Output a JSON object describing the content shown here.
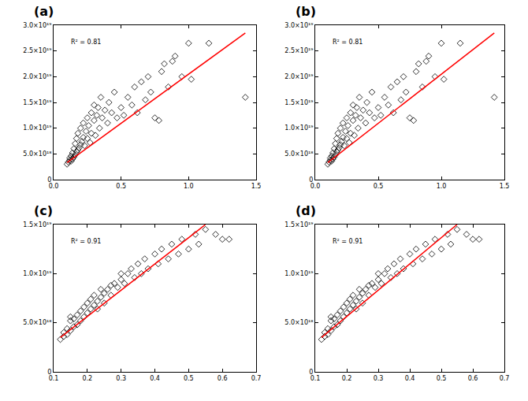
{
  "chart_data": [
    {
      "type": "scatter",
      "title": "(a)",
      "annotations": [
        "R² = 0.81"
      ],
      "grid": false,
      "xlim": [
        0,
        1.5
      ],
      "xticks": [
        {
          "value": 0,
          "label": "0.0"
        },
        0.5,
        {
          "value": 1,
          "label": "1.0"
        },
        1.5
      ],
      "ylim": [
        0,
        3e+19
      ],
      "yticks": [
        0,
        {
          "value": 5e+18,
          "label": "5.0×10¹⁸"
        },
        {
          "value": 1e+19,
          "label": "1.0×10¹⁹"
        },
        {
          "value": 1.5e+19,
          "label": "1.5×10¹⁹"
        },
        {
          "value": 2e+19,
          "label": "2.0×10¹⁹"
        },
        {
          "value": 2.5e+19,
          "label": "2.5×10¹⁹"
        },
        {
          "value": 3e+19,
          "label": "3.0×10¹⁹"
        }
      ],
      "series": [
        {
          "type": "scatter",
          "marker": "diamond",
          "color": "#000000",
          "x": [
            0.1,
            0.11,
            0.12,
            0.12,
            0.13,
            0.13,
            0.14,
            0.14,
            0.15,
            0.15,
            0.16,
            0.16,
            0.17,
            0.17,
            0.18,
            0.18,
            0.19,
            0.2,
            0.2,
            0.21,
            0.22,
            0.22,
            0.23,
            0.24,
            0.25,
            0.25,
            0.26,
            0.27,
            0.28,
            0.28,
            0.3,
            0.3,
            0.31,
            0.32,
            0.33,
            0.34,
            0.35,
            0.36,
            0.38,
            0.4,
            0.41,
            0.43,
            0.45,
            0.47,
            0.5,
            0.52,
            0.55,
            0.58,
            0.6,
            0.62,
            0.65,
            0.68,
            0.7,
            0.72,
            0.75,
            0.78,
            0.8,
            0.82,
            0.85,
            0.88,
            0.9,
            0.95,
            1.0,
            1.02,
            1.15,
            1.42
          ],
          "values": [
            3e+18,
            3.4e+18,
            3.8e+18,
            4.2e+18,
            3.6e+18,
            4.6e+18,
            4e+18,
            5.2e+18,
            4.4e+18,
            6e+18,
            4.8e+18,
            7e+18,
            5.4e+18,
            8e+18,
            5.8e+18,
            9e+18,
            6.2e+18,
            6.8e+18,
            1e+19,
            7.4e+18,
            8.2e+18,
            1.1e+19,
            6.6e+18,
            9.4e+18,
            1.2e+19,
            8e+18,
            1.05e+19,
            7.2e+18,
            1.3e+19,
            9e+18,
            1.15e+19,
            1.45e+19,
            8.6e+18,
            1.25e+19,
            1.4e+19,
            1e+19,
            1.6e+19,
            1.2e+19,
            1.35e+19,
            1.1e+19,
            1.5e+19,
            1.3e+19,
            1.7e+19,
            1.2e+19,
            1.4e+19,
            1.25e+19,
            1.6e+19,
            1.45e+19,
            1.8e+19,
            1.3e+19,
            1.9e+19,
            1.55e+19,
            2e+19,
            1.7e+19,
            1.2e+19,
            1.15e+19,
            2.1e+19,
            2.25e+19,
            1.8e+19,
            2.3e+19,
            2.4e+19,
            2e+19,
            2.65e+19,
            1.95e+19,
            2.65e+19,
            1.6e+19
          ]
        },
        {
          "type": "line",
          "line_style": "solid",
          "color": "#ff0000",
          "x": [
            0.1,
            1.42
          ],
          "values": [
            3.3e+18,
            2.85e+19
          ]
        }
      ]
    },
    {
      "type": "scatter",
      "title": "(b)",
      "annotations": [
        "R² = 0.81"
      ],
      "grid": false,
      "xlim": [
        0,
        1.5
      ],
      "xticks": [
        {
          "value": 0,
          "label": "0.0"
        },
        0.5,
        {
          "value": 1,
          "label": "1.0"
        },
        1.5
      ],
      "ylim": [
        0,
        3e+19
      ],
      "yticks": [
        0,
        {
          "value": 5e+18,
          "label": "5.0×10¹⁸"
        },
        {
          "value": 1e+19,
          "label": "1.0×10¹⁹"
        },
        {
          "value": 1.5e+19,
          "label": "1.5×10¹⁹"
        },
        {
          "value": 2e+19,
          "label": "2.0×10¹⁹"
        },
        {
          "value": 2.5e+19,
          "label": "2.5×10¹⁹"
        },
        {
          "value": 3e+19,
          "label": "3.0×10¹⁹"
        }
      ],
      "series": [
        {
          "type": "scatter",
          "marker": "diamond",
          "color": "#000000",
          "x": [
            0.1,
            0.11,
            0.12,
            0.12,
            0.13,
            0.13,
            0.14,
            0.14,
            0.15,
            0.15,
            0.16,
            0.16,
            0.17,
            0.17,
            0.18,
            0.18,
            0.19,
            0.2,
            0.2,
            0.21,
            0.22,
            0.22,
            0.23,
            0.24,
            0.25,
            0.25,
            0.26,
            0.27,
            0.28,
            0.28,
            0.3,
            0.3,
            0.31,
            0.32,
            0.33,
            0.34,
            0.35,
            0.36,
            0.38,
            0.4,
            0.41,
            0.43,
            0.45,
            0.47,
            0.5,
            0.52,
            0.55,
            0.58,
            0.6,
            0.62,
            0.65,
            0.68,
            0.7,
            0.72,
            0.75,
            0.78,
            0.8,
            0.82,
            0.85,
            0.88,
            0.9,
            0.95,
            1.0,
            1.02,
            1.15,
            1.42
          ],
          "values": [
            3e+18,
            3.4e+18,
            3.8e+18,
            4.2e+18,
            3.6e+18,
            4.6e+18,
            4e+18,
            5.2e+18,
            4.4e+18,
            6e+18,
            4.8e+18,
            7e+18,
            5.4e+18,
            8e+18,
            5.8e+18,
            9e+18,
            6.2e+18,
            6.8e+18,
            1e+19,
            7.4e+18,
            8.2e+18,
            1.1e+19,
            6.6e+18,
            9.4e+18,
            1.2e+19,
            8e+18,
            1.05e+19,
            7.2e+18,
            1.3e+19,
            9e+18,
            1.15e+19,
            1.45e+19,
            8.6e+18,
            1.25e+19,
            1.4e+19,
            1e+19,
            1.6e+19,
            1.2e+19,
            1.35e+19,
            1.1e+19,
            1.5e+19,
            1.3e+19,
            1.7e+19,
            1.2e+19,
            1.4e+19,
            1.25e+19,
            1.6e+19,
            1.45e+19,
            1.8e+19,
            1.3e+19,
            1.9e+19,
            1.55e+19,
            2e+19,
            1.7e+19,
            1.2e+19,
            1.15e+19,
            2.1e+19,
            2.25e+19,
            1.8e+19,
            2.3e+19,
            2.4e+19,
            2e+19,
            2.65e+19,
            1.95e+19,
            2.65e+19,
            1.6e+19
          ]
        },
        {
          "type": "line",
          "line_style": "solid",
          "color": "#ff0000",
          "x": [
            0.1,
            1.42
          ],
          "values": [
            3.3e+18,
            2.85e+19
          ]
        }
      ]
    },
    {
      "type": "scatter",
      "title": "(c)",
      "annotations": [
        "R² = 0.91"
      ],
      "grid": false,
      "xlim": [
        0.1,
        0.7
      ],
      "xticks": [
        0.1,
        0.2,
        0.3,
        0.4,
        0.5,
        0.6,
        0.7
      ],
      "ylim": [
        0,
        1.5e+19
      ],
      "yticks": [
        0,
        {
          "value": 5e+18,
          "label": "5.0×10¹⁸"
        },
        {
          "value": 1e+19,
          "label": "1.0×10¹⁹"
        },
        {
          "value": 1.5e+19,
          "label": "1.5×10¹⁹"
        }
      ],
      "series": [
        {
          "type": "scatter",
          "marker": "diamond",
          "color": "#000000",
          "x": [
            0.12,
            0.13,
            0.13,
            0.14,
            0.14,
            0.15,
            0.15,
            0.15,
            0.16,
            0.16,
            0.17,
            0.17,
            0.18,
            0.18,
            0.19,
            0.19,
            0.2,
            0.2,
            0.21,
            0.21,
            0.22,
            0.22,
            0.23,
            0.23,
            0.24,
            0.24,
            0.25,
            0.25,
            0.26,
            0.27,
            0.27,
            0.28,
            0.29,
            0.3,
            0.3,
            0.31,
            0.32,
            0.33,
            0.34,
            0.35,
            0.36,
            0.37,
            0.38,
            0.4,
            0.41,
            0.42,
            0.44,
            0.45,
            0.47,
            0.48,
            0.5,
            0.52,
            0.53,
            0.55,
            0.58,
            0.6,
            0.62
          ],
          "values": [
            3.3e+18,
            3.6e+18,
            4e+18,
            3.8e+18,
            4.4e+18,
            4.2e+18,
            5.2e+18,
            5.6e+18,
            4.6e+18,
            5.4e+18,
            4.8e+18,
            5.8e+18,
            5.2e+18,
            6.2e+18,
            5.6e+18,
            6.6e+18,
            6e+18,
            7e+18,
            6.4e+18,
            7.4e+18,
            6.8e+18,
            7.8e+18,
            7.2e+18,
            6.4e+18,
            7.6e+18,
            8.4e+18,
            8e+18,
            7e+18,
            8.4e+18,
            8.8e+18,
            7.8e+18,
            9e+18,
            8.6e+18,
            9.4e+18,
            1e+19,
            9e+18,
            1e+19,
            1.05e+19,
            9.6e+18,
            1.1e+19,
            1e+19,
            1.15e+19,
            1.05e+19,
            1.2e+19,
            1.1e+19,
            1.25e+19,
            1.15e+19,
            1.3e+19,
            1.2e+19,
            1.35e+19,
            1.25e+19,
            1.4e+19,
            1.3e+19,
            1.45e+19,
            1.4e+19,
            1.35e+19,
            1.35e+19
          ]
        },
        {
          "type": "line",
          "line_style": "solid",
          "color": "#ff0000",
          "x": [
            0.12,
            0.55
          ],
          "values": [
            3.5e+18,
            1.5e+19
          ]
        }
      ]
    },
    {
      "type": "scatter",
      "title": "(d)",
      "annotations": [
        "R² = 0.91"
      ],
      "grid": false,
      "xlim": [
        0.1,
        0.7
      ],
      "xticks": [
        0.1,
        0.2,
        0.3,
        0.4,
        0.5,
        0.6,
        0.7
      ],
      "ylim": [
        0,
        1.5e+19
      ],
      "yticks": [
        0,
        {
          "value": 5e+18,
          "label": "5.0×10¹⁸"
        },
        {
          "value": 1e+19,
          "label": "1.0×10¹⁹"
        },
        {
          "value": 1.5e+19,
          "label": "1.5×10¹⁹"
        }
      ],
      "series": [
        {
          "type": "scatter",
          "marker": "diamond",
          "color": "#000000",
          "x": [
            0.12,
            0.13,
            0.13,
            0.14,
            0.14,
            0.15,
            0.15,
            0.15,
            0.16,
            0.16,
            0.17,
            0.17,
            0.18,
            0.18,
            0.19,
            0.19,
            0.2,
            0.2,
            0.21,
            0.21,
            0.22,
            0.22,
            0.23,
            0.23,
            0.24,
            0.24,
            0.25,
            0.25,
            0.26,
            0.27,
            0.27,
            0.28,
            0.29,
            0.3,
            0.3,
            0.31,
            0.32,
            0.33,
            0.34,
            0.35,
            0.36,
            0.37,
            0.38,
            0.4,
            0.41,
            0.42,
            0.44,
            0.45,
            0.47,
            0.48,
            0.5,
            0.52,
            0.53,
            0.55,
            0.58,
            0.6,
            0.62
          ],
          "values": [
            3.3e+18,
            3.6e+18,
            4e+18,
            3.8e+18,
            4.4e+18,
            4.2e+18,
            5.2e+18,
            5.6e+18,
            4.6e+18,
            5.4e+18,
            4.8e+18,
            5.8e+18,
            5.2e+18,
            6.2e+18,
            5.6e+18,
            6.6e+18,
            6e+18,
            7e+18,
            6.4e+18,
            7.4e+18,
            6.8e+18,
            7.8e+18,
            7.2e+18,
            6.4e+18,
            7.6e+18,
            8.4e+18,
            8e+18,
            7e+18,
            8.4e+18,
            8.8e+18,
            7.8e+18,
            9e+18,
            8.6e+18,
            9.4e+18,
            1e+19,
            9e+18,
            1e+19,
            1.05e+19,
            9.6e+18,
            1.1e+19,
            1e+19,
            1.15e+19,
            1.05e+19,
            1.2e+19,
            1.1e+19,
            1.25e+19,
            1.15e+19,
            1.3e+19,
            1.2e+19,
            1.35e+19,
            1.25e+19,
            1.4e+19,
            1.3e+19,
            1.45e+19,
            1.4e+19,
            1.35e+19,
            1.35e+19
          ]
        },
        {
          "type": "line",
          "line_style": "solid",
          "color": "#ff0000",
          "x": [
            0.12,
            0.55
          ],
          "values": [
            3.5e+18,
            1.5e+19
          ]
        }
      ]
    }
  ]
}
